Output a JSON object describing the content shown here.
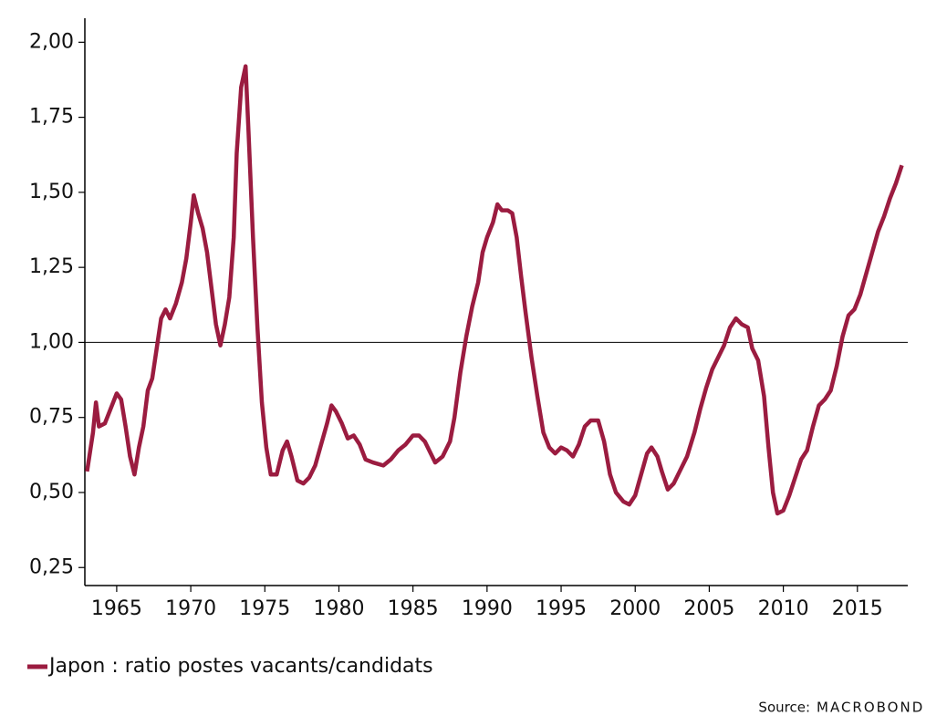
{
  "chart_data": {
    "type": "line",
    "xlim": [
      1962.85,
      2018.4
    ],
    "ylim": [
      0.19,
      2.08
    ],
    "xticks": [
      1965,
      1970,
      1975,
      1980,
      1985,
      1990,
      1995,
      2000,
      2005,
      2010,
      2015
    ],
    "yticks": [
      {
        "value": 0.25,
        "label": "0,25"
      },
      {
        "value": 0.5,
        "label": "0,50"
      },
      {
        "value": 0.75,
        "label": "0,75"
      },
      {
        "value": 1,
        "label": "1,00"
      },
      {
        "value": 1.25,
        "label": "1,25"
      },
      {
        "value": 1.5,
        "label": "1,50"
      },
      {
        "value": 1.75,
        "label": "1,75"
      },
      {
        "value": 2,
        "label": "2,00"
      }
    ],
    "hline": 1,
    "source": "Source:",
    "source_brand": "MACROBOND",
    "x": [
      1963.0,
      1963.4,
      1963.6,
      1963.8,
      1964.2,
      1964.6,
      1965.0,
      1965.3,
      1965.6,
      1965.9,
      1966.2,
      1966.5,
      1966.8,
      1967.1,
      1967.4,
      1967.7,
      1968.0,
      1968.3,
      1968.6,
      1969.0,
      1969.4,
      1969.7,
      1970.0,
      1970.2,
      1970.5,
      1970.8,
      1971.1,
      1971.4,
      1971.7,
      1972.0,
      1972.3,
      1972.6,
      1972.9,
      1973.1,
      1973.4,
      1973.7,
      1973.9,
      1974.2,
      1974.5,
      1974.8,
      1975.1,
      1975.4,
      1975.8,
      1976.2,
      1976.5,
      1976.8,
      1977.2,
      1977.6,
      1978.0,
      1978.4,
      1978.8,
      1979.2,
      1979.5,
      1979.8,
      1980.2,
      1980.6,
      1981.0,
      1981.4,
      1981.8,
      1982.3,
      1983.0,
      1983.5,
      1984.0,
      1984.5,
      1985.0,
      1985.4,
      1985.8,
      1986.2,
      1986.5,
      1987.0,
      1987.5,
      1987.8,
      1988.2,
      1988.6,
      1989.0,
      1989.4,
      1989.7,
      1990.0,
      1990.4,
      1990.7,
      1991.0,
      1991.4,
      1991.7,
      1992.0,
      1992.3,
      1992.6,
      1993.0,
      1993.4,
      1993.8,
      1994.2,
      1994.6,
      1995.0,
      1995.4,
      1995.8,
      1996.2,
      1996.6,
      1997.0,
      1997.5,
      1997.9,
      1998.3,
      1998.7,
      1999.2,
      1999.6,
      2000.0,
      2000.4,
      2000.8,
      2001.1,
      2001.5,
      2001.8,
      2002.2,
      2002.6,
      2003.0,
      2003.5,
      2004.0,
      2004.4,
      2004.8,
      2005.2,
      2005.6,
      2006.0,
      2006.4,
      2006.8,
      2007.2,
      2007.6,
      2007.9,
      2008.3,
      2008.7,
      2009.0,
      2009.3,
      2009.6,
      2010.0,
      2010.4,
      2010.8,
      2011.2,
      2011.6,
      2012.0,
      2012.4,
      2012.8,
      2013.2,
      2013.6,
      2014.0,
      2014.4,
      2014.8,
      2015.2,
      2015.6,
      2016.0,
      2016.4,
      2016.8,
      2017.2,
      2017.6,
      2018.0
    ],
    "series": [
      {
        "name": "Japon : ratio postes vacants/candidats",
        "color": "#9b1c40",
        "values": [
          0.57,
          0.7,
          0.8,
          0.72,
          0.73,
          0.78,
          0.83,
          0.81,
          0.72,
          0.62,
          0.56,
          0.65,
          0.72,
          0.84,
          0.88,
          0.98,
          1.08,
          1.11,
          1.08,
          1.13,
          1.2,
          1.28,
          1.4,
          1.49,
          1.43,
          1.38,
          1.3,
          1.18,
          1.06,
          0.99,
          1.06,
          1.15,
          1.35,
          1.63,
          1.85,
          1.92,
          1.7,
          1.35,
          1.05,
          0.8,
          0.65,
          0.56,
          0.56,
          0.64,
          0.67,
          0.62,
          0.54,
          0.53,
          0.55,
          0.59,
          0.66,
          0.73,
          0.79,
          0.77,
          0.73,
          0.68,
          0.69,
          0.66,
          0.61,
          0.6,
          0.59,
          0.61,
          0.64,
          0.66,
          0.69,
          0.69,
          0.67,
          0.63,
          0.6,
          0.62,
          0.67,
          0.75,
          0.9,
          1.02,
          1.12,
          1.2,
          1.3,
          1.35,
          1.4,
          1.46,
          1.44,
          1.44,
          1.43,
          1.35,
          1.22,
          1.1,
          0.95,
          0.82,
          0.7,
          0.65,
          0.63,
          0.65,
          0.64,
          0.62,
          0.66,
          0.72,
          0.74,
          0.74,
          0.67,
          0.56,
          0.5,
          0.47,
          0.46,
          0.49,
          0.56,
          0.63,
          0.65,
          0.62,
          0.57,
          0.51,
          0.53,
          0.57,
          0.62,
          0.7,
          0.78,
          0.85,
          0.91,
          0.95,
          0.99,
          1.05,
          1.08,
          1.06,
          1.05,
          0.98,
          0.94,
          0.82,
          0.65,
          0.5,
          0.43,
          0.44,
          0.49,
          0.55,
          0.61,
          0.64,
          0.72,
          0.79,
          0.81,
          0.84,
          0.92,
          1.02,
          1.09,
          1.11,
          1.16,
          1.23,
          1.3,
          1.37,
          1.42,
          1.48,
          1.53,
          1.59
        ]
      }
    ]
  }
}
